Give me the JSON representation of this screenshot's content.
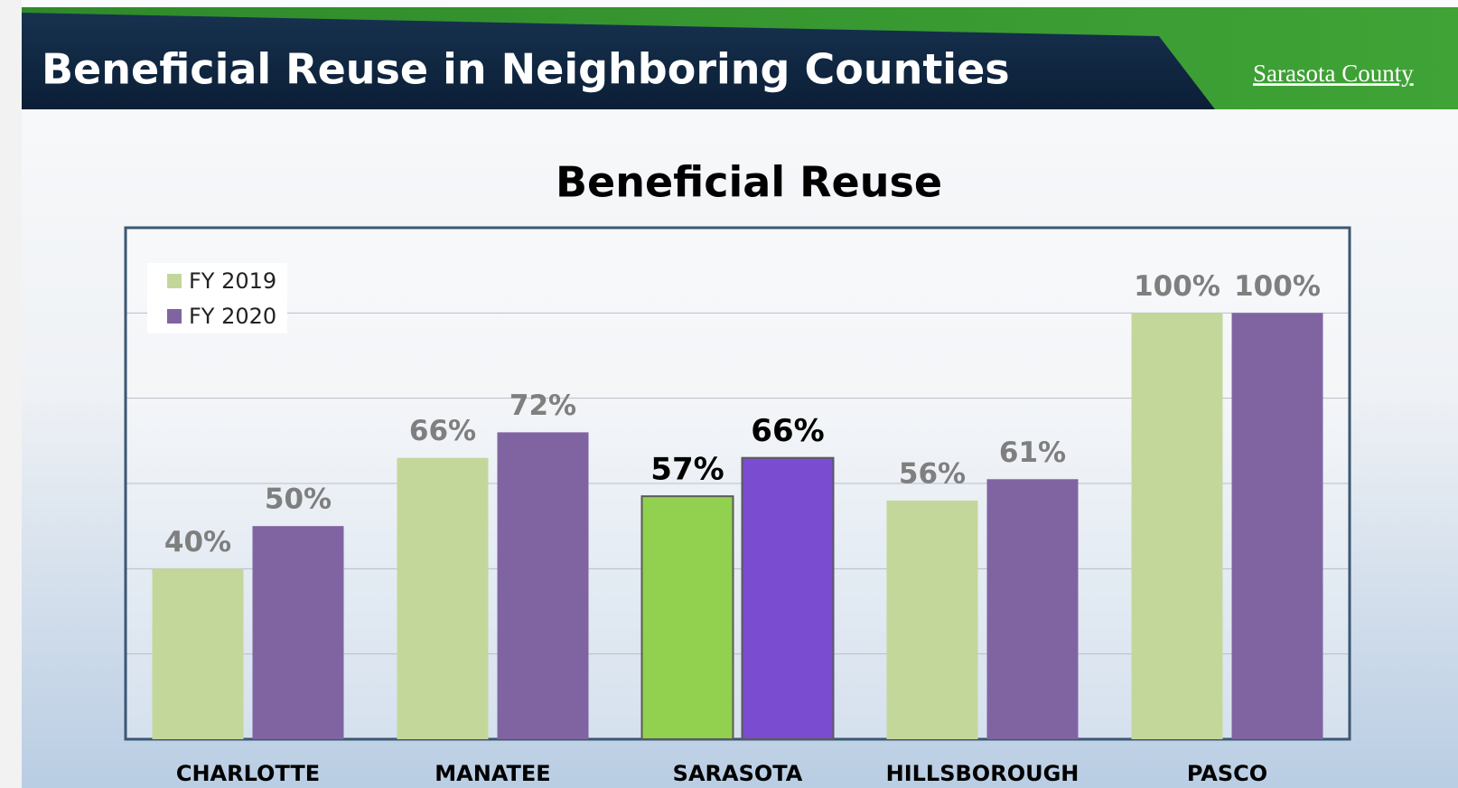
{
  "header": {
    "title": "Beneficial Reuse in Neighboring Counties",
    "logo": "Sarasota County"
  },
  "chart_data": {
    "type": "bar",
    "title": "Beneficial Reuse",
    "categories": [
      "CHARLOTTE",
      "MANATEE",
      "SARASOTA",
      "HILLSBOROUGH",
      "PASCO"
    ],
    "series": [
      {
        "name": "FY 2019",
        "color": "#c4d79b",
        "colors": [
          "#c4d79b",
          "#c4d79b",
          "#92d050",
          "#c4d79b",
          "#c4d79b"
        ],
        "values": [
          40,
          66,
          57,
          56,
          100
        ],
        "value_labels": [
          "40%",
          "66%",
          "57%",
          "56%",
          "100%"
        ],
        "value_label_colors": [
          "#7f7f7f",
          "#7f7f7f",
          "#000000",
          "#7f7f7f",
          "#7f7f7f"
        ]
      },
      {
        "name": "FY 2020",
        "color": "#8064a2",
        "colors": [
          "#8064a2",
          "#8064a2",
          "#7a4cd0",
          "#8064a2",
          "#8064a2"
        ],
        "values": [
          50,
          72,
          66,
          61,
          100
        ],
        "value_labels": [
          "50%",
          "72%",
          "66%",
          "61%",
          "100%"
        ],
        "value_label_colors": [
          "#7f7f7f",
          "#7f7f7f",
          "#000000",
          "#7f7f7f",
          "#7f7f7f"
        ]
      }
    ],
    "ylim": [
      0,
      120
    ],
    "yticks": [
      0,
      20,
      40,
      60,
      80,
      100,
      120
    ],
    "ytick_labels": false,
    "grid": true,
    "legend": "top-left"
  }
}
